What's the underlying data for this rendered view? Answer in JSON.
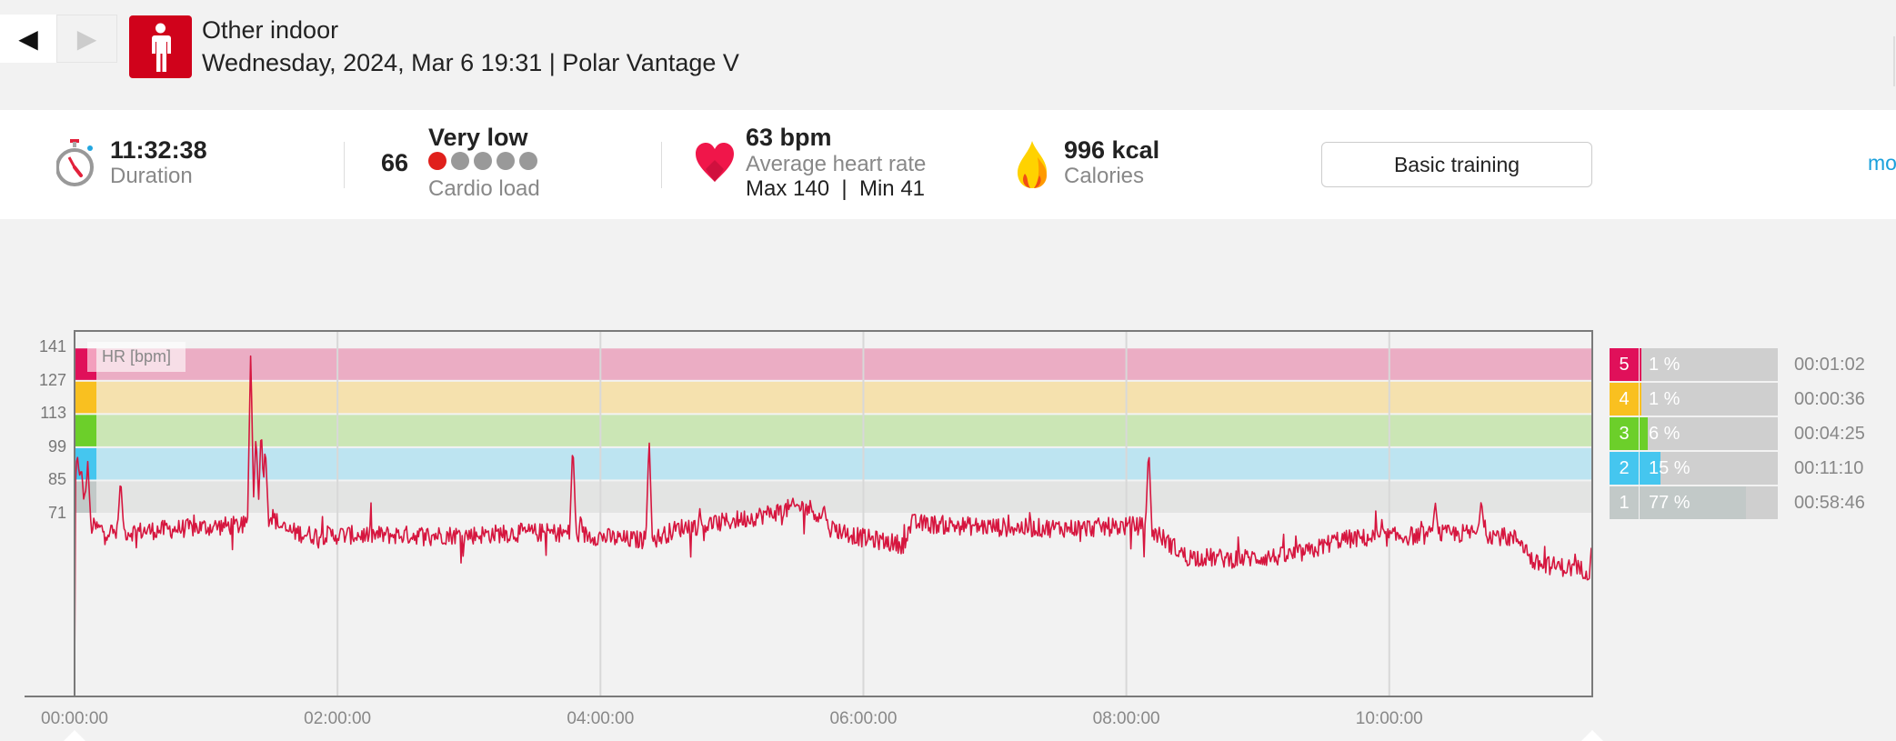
{
  "nav": {
    "back_icon": "triangle-left-icon",
    "forward_icon": "triangle-right-icon"
  },
  "header": {
    "sport_icon": "person-icon",
    "sport_color": "#d0021b",
    "title": "Other indoor",
    "subtitle": "Wednesday, 2024, Mar 6 19:31 | Polar Vantage V"
  },
  "summary": {
    "duration": {
      "value": "11:32:38",
      "label": "Duration",
      "icon": "stopwatch-icon"
    },
    "cardio_load": {
      "value": "66",
      "level": "Very low",
      "label": "Cardio load",
      "dots_filled": 1,
      "dots_total": 5
    },
    "heart_rate": {
      "value": "63 bpm",
      "label": "Average heart rate",
      "max": "Max 140",
      "separator": "|",
      "min": "Min 41",
      "icon": "heart-icon"
    },
    "calories": {
      "value": "996 kcal",
      "label": "Calories",
      "icon": "flame-icon"
    },
    "training_button": "Basic training",
    "more_link": "mo"
  },
  "chart_data": {
    "type": "line",
    "title": "HR [bpm]",
    "ylabel": "HR [bpm]",
    "xlabel": "",
    "ylim": [
      -6,
      148
    ],
    "xlim_hours": [
      0,
      11.544
    ],
    "y_ticks": [
      141,
      127,
      113,
      99,
      85,
      71
    ],
    "x_ticks": [
      {
        "hours": 0,
        "label": "00:00:00"
      },
      {
        "hours": 2,
        "label": "02:00:00"
      },
      {
        "hours": 4,
        "label": "04:00:00"
      },
      {
        "hours": 6,
        "label": "06:00:00"
      },
      {
        "hours": 8,
        "label": "08:00:00"
      },
      {
        "hours": 10,
        "label": "10:00:00"
      }
    ],
    "line_color": "#d6163f",
    "noise_bpm": 4,
    "trend": [
      [
        0,
        70
      ],
      [
        0.05,
        88
      ],
      [
        0.1,
        66
      ],
      [
        0.3,
        63
      ],
      [
        0.6,
        64
      ],
      [
        0.9,
        65
      ],
      [
        1.2,
        66
      ],
      [
        1.3,
        66
      ],
      [
        1.5,
        70
      ],
      [
        1.6,
        64
      ],
      [
        1.8,
        62
      ],
      [
        2.2,
        62
      ],
      [
        2.6,
        62
      ],
      [
        3.0,
        62
      ],
      [
        3.4,
        63
      ],
      [
        3.7,
        63
      ],
      [
        3.9,
        62
      ],
      [
        4.2,
        60
      ],
      [
        4.4,
        60
      ],
      [
        4.6,
        65
      ],
      [
        4.9,
        67
      ],
      [
        5.2,
        70
      ],
      [
        5.5,
        74
      ],
      [
        5.62,
        73
      ],
      [
        5.7,
        66
      ],
      [
        5.98,
        61
      ],
      [
        6.3,
        58
      ],
      [
        6.37,
        67
      ],
      [
        6.7,
        66
      ],
      [
        7.2,
        65
      ],
      [
        7.7,
        65
      ],
      [
        8.1,
        66
      ],
      [
        8.25,
        62
      ],
      [
        8.45,
        53
      ],
      [
        8.8,
        52
      ],
      [
        9.2,
        53
      ],
      [
        9.4,
        55
      ],
      [
        9.6,
        60
      ],
      [
        9.9,
        61
      ],
      [
        10.3,
        62
      ],
      [
        10.7,
        63
      ],
      [
        11.0,
        60
      ],
      [
        11.1,
        50
      ],
      [
        11.4,
        48
      ],
      [
        11.52,
        47
      ],
      [
        11.544,
        56
      ]
    ],
    "spikes": [
      [
        0.02,
        97
      ],
      [
        0.1,
        93
      ],
      [
        0.35,
        86
      ],
      [
        1.34,
        140
      ],
      [
        1.38,
        105
      ],
      [
        1.42,
        108
      ],
      [
        1.45,
        100
      ],
      [
        3.79,
        101
      ],
      [
        4.37,
        103
      ],
      [
        5.7,
        75
      ],
      [
        8.17,
        99
      ],
      [
        10.35,
        76
      ],
      [
        10.7,
        77
      ]
    ],
    "zones": [
      {
        "zone": "5",
        "min": 127,
        "max": 141,
        "color": "#e0105a",
        "band_color": "#ebadc4",
        "percent": 1,
        "percent_label": "1 %",
        "time": "00:01:02"
      },
      {
        "zone": "4",
        "min": 113,
        "max": 127,
        "color": "#f9c020",
        "band_color": "#f5e1ae",
        "percent": 1,
        "percent_label": "1 %",
        "time": "00:00:36"
      },
      {
        "zone": "3",
        "min": 99,
        "max": 113,
        "color": "#6ccf2a",
        "band_color": "#cbe6b5",
        "percent": 6,
        "percent_label": "6 %",
        "time": "00:04:25"
      },
      {
        "zone": "2",
        "min": 85,
        "max": 99,
        "color": "#45c6ef",
        "band_color": "#bde4f1",
        "percent": 15,
        "percent_label": "15 %",
        "time": "00:11:10"
      },
      {
        "zone": "1",
        "min": 71,
        "max": 85,
        "color": "#c2c9c8",
        "band_color": "#e3e4e3",
        "percent": 77,
        "percent_label": "77 %",
        "time": "00:58:46"
      }
    ]
  }
}
